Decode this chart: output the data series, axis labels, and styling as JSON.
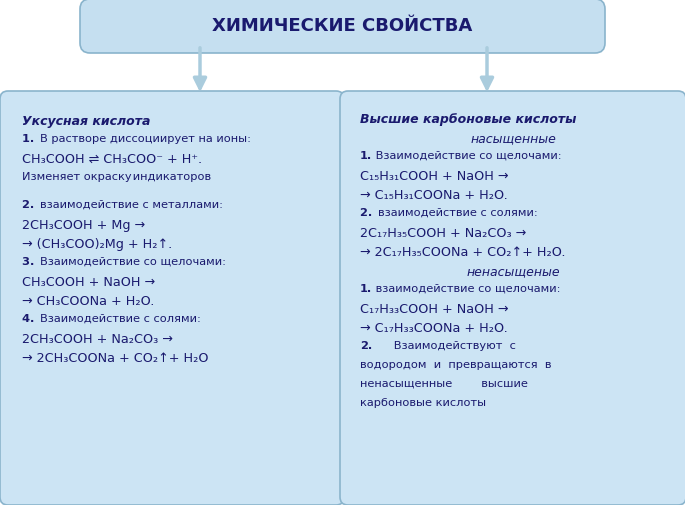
{
  "title": "ХИМИЧЕСКИЕ СВОЙСТВА",
  "title_box_color": "#c5dff0",
  "title_box_border": "#8ab4cc",
  "box_color": "#cce4f4",
  "box_border": "#8ab4cc",
  "bg_color": "#ffffff",
  "arrow_color": "#aaccdd",
  "left_box_title": "Уксусная кислота",
  "right_box_title_line1": "Высшие карбоновые кислоты",
  "right_box_title_line2": "насыщенные",
  "left_lines": [
    {
      "text": "1. В растворе диссоциирует на ионы:",
      "bold_prefix": "1. "
    },
    {
      "text": "CH₃COOH ⇌ CH₃COO⁻ + H⁺.",
      "style": "formula"
    },
    {
      "text": "Изменяет окраску индикаторов",
      "style": "normal"
    },
    {
      "text": "",
      "style": "gap"
    },
    {
      "text": "2. взаимодействие с металлами:",
      "bold_prefix": "2. "
    },
    {
      "text": "2CH₃COOH + Mg →",
      "style": "formula"
    },
    {
      "text": "→ (CH₃COO)₂Mg + H₂↑.",
      "style": "formula"
    },
    {
      "text": "3. Взаимодействие со щелочами:",
      "bold_prefix": "3. "
    },
    {
      "text": "CH₃COOH + NaOH →",
      "style": "formula"
    },
    {
      "text": "→ CH₃COONa + H₂O.",
      "style": "formula"
    },
    {
      "text": "4. Взаимодействие с солями:",
      "bold_prefix": "4. "
    },
    {
      "text": "2CH₃COOH + Na₂CO₃ →",
      "style": "formula"
    },
    {
      "text": "→ 2CH₃COONa + CO₂↑+ H₂O",
      "style": "formula"
    }
  ],
  "right_lines": [
    {
      "text": "1. Взаимодействие со щелочами:",
      "bold_prefix": "1."
    },
    {
      "text": "C₁₅H₃₁COOH + NaOH →",
      "style": "formula"
    },
    {
      "text": "→ C₁₅H₃₁COONa + H₂O.",
      "style": "formula"
    },
    {
      "text": "2. взаимодействие с солями:",
      "bold_prefix": "2. "
    },
    {
      "text": "2C₁₇H₃₅COOH + Na₂CO₃ →",
      "style": "formula"
    },
    {
      "text": "→ 2C₁₇H₃₅COONa + CO₂↑+ H₂O.",
      "style": "formula"
    },
    {
      "text": "ненасыщеные",
      "style": "italic_center"
    },
    {
      "text": "1. взаимодействие со щелочами:",
      "bold_prefix": "1."
    },
    {
      "text": "C₁₇H₃₃COOH + NaOH →",
      "style": "formula"
    },
    {
      "text": "→ C₁₇H₃₃COONa + H₂O.",
      "style": "formula"
    },
    {
      "text": "2.      Взаимодействуют  с",
      "bold_prefix": "2."
    },
    {
      "text": "водородом  и  превращаются  в",
      "style": "normal"
    },
    {
      "text": "ненасыщенные        высшие",
      "style": "normal"
    },
    {
      "text": "карбоновые кислоты",
      "style": "normal"
    }
  ]
}
